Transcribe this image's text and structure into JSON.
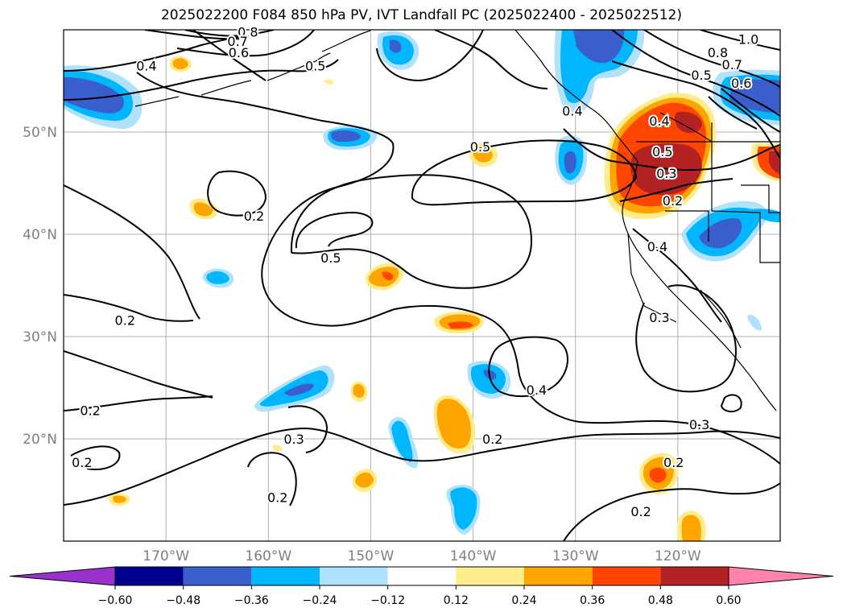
{
  "title": "2025022200 F084 850 hPa PV, IVT Landfall PC (2025022400 - 2025022512)",
  "map": {
    "lon_range": [
      -180,
      -110
    ],
    "lat_range": [
      10,
      60
    ],
    "lon_ticks": [
      {
        "lon": -170,
        "label": "170°W"
      },
      {
        "lon": -160,
        "label": "160°W"
      },
      {
        "lon": -150,
        "label": "150°W"
      },
      {
        "lon": -140,
        "label": "140°W"
      },
      {
        "lon": -130,
        "label": "130°W"
      },
      {
        "lon": -120,
        "label": "120°W"
      }
    ],
    "lat_ticks": [
      {
        "lat": 50,
        "label": "50°N"
      },
      {
        "lat": 40,
        "label": "40°N"
      },
      {
        "lat": 30,
        "label": "30°N"
      },
      {
        "lat": 20,
        "label": "20°N"
      }
    ],
    "grid": true
  },
  "contour_labels": [
    {
      "text": "0.8",
      "lon": -162.0,
      "lat": 59.8
    },
    {
      "text": "0.7",
      "lon": -163.0,
      "lat": 58.9
    },
    {
      "text": "0.6",
      "lon": -162.9,
      "lat": 57.8
    },
    {
      "text": "0.4",
      "lon": -171.9,
      "lat": 56.5
    },
    {
      "text": "0.5",
      "lon": -155.4,
      "lat": 56.5
    },
    {
      "text": "0.4",
      "lon": -130.3,
      "lat": 52.1
    },
    {
      "text": "1.0",
      "lon": -113.1,
      "lat": 59.1
    },
    {
      "text": "0.8",
      "lon": -116.1,
      "lat": 57.8
    },
    {
      "text": "0.7",
      "lon": -114.7,
      "lat": 56.6
    },
    {
      "text": "0.5",
      "lon": -117.7,
      "lat": 55.6
    },
    {
      "text": "0.6",
      "lon": -113.8,
      "lat": 54.8
    },
    {
      "text": "0.4",
      "lon": -121.8,
      "lat": 51.1
    },
    {
      "text": "0.5",
      "lon": -121.5,
      "lat": 48.1
    },
    {
      "text": "0.3",
      "lon": -121.1,
      "lat": 46.0
    },
    {
      "text": "0.2",
      "lon": -120.5,
      "lat": 43.3
    },
    {
      "text": "0.5",
      "lon": -139.3,
      "lat": 48.6
    },
    {
      "text": "0.2",
      "lon": -161.4,
      "lat": 41.8
    },
    {
      "text": "0.5",
      "lon": -153.9,
      "lat": 37.7
    },
    {
      "text": "0.4",
      "lon": -122.0,
      "lat": 38.8
    },
    {
      "text": "0.3",
      "lon": -121.8,
      "lat": 31.9
    },
    {
      "text": "0.2",
      "lon": -174.0,
      "lat": 31.6
    },
    {
      "text": "0.4",
      "lon": -133.8,
      "lat": 24.8
    },
    {
      "text": "0.2",
      "lon": -177.4,
      "lat": 22.8
    },
    {
      "text": "0.3",
      "lon": -117.9,
      "lat": 21.4
    },
    {
      "text": "0.3",
      "lon": -157.5,
      "lat": 20.0
    },
    {
      "text": "0.2",
      "lon": -138.1,
      "lat": 20.0
    },
    {
      "text": "0.2",
      "lon": -178.2,
      "lat": 17.7
    },
    {
      "text": "0.2",
      "lon": -120.4,
      "lat": 17.7
    },
    {
      "text": "0.2",
      "lon": -159.1,
      "lat": 14.3
    },
    {
      "text": "0.2",
      "lon": -123.6,
      "lat": 12.9
    }
  ],
  "colorbar": {
    "colors": [
      "#9932cc",
      "#000090",
      "#3a5fcd",
      "#00b7ff",
      "#b0e2ff",
      "#ffffff",
      "#ffec8b",
      "#ffa500",
      "#ff4500",
      "#b22222",
      "#ff82ab"
    ],
    "tick_labels": [
      "−0.60",
      "−0.48",
      "−0.36",
      "−0.24",
      "−0.12",
      "0.12",
      "0.24",
      "0.36",
      "0.48",
      "0.60"
    ],
    "extend": "both"
  }
}
